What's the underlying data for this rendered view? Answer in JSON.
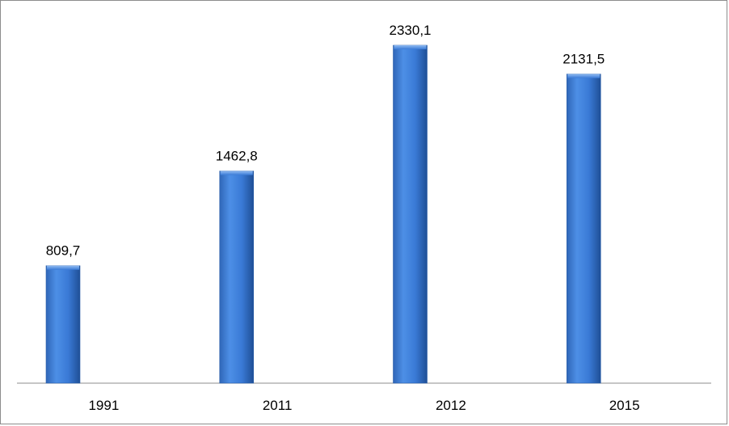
{
  "chart_data": {
    "type": "bar",
    "categories": [
      "1991",
      "2011",
      "2012",
      "2015"
    ],
    "values": [
      809.7,
      1462.8,
      2330.1,
      2131.5
    ],
    "value_labels": [
      "809,7",
      "1462,8",
      "2330,1",
      "2131,5"
    ],
    "title": "",
    "xlabel": "",
    "ylabel": "",
    "ylim": [
      0,
      2400
    ],
    "grid": false,
    "legend": "none",
    "bar_color": "#3a7ad6"
  }
}
